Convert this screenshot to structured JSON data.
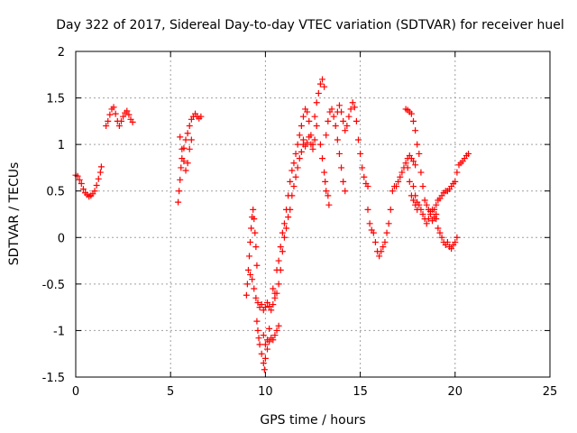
{
  "chart_data": {
    "type": "scatter",
    "title": "Day 322 of 2017, Sidereal Day-to-day VTEC variation (SDTVAR) for receiver huel",
    "xlabel": "GPS time / hours",
    "ylabel": "SDTVAR / TECUs",
    "xlim": [
      0,
      25
    ],
    "ylim": [
      -1.5,
      2
    ],
    "x_ticks": [
      0,
      5,
      10,
      15,
      20,
      25
    ],
    "x_tick_labels": [
      "0",
      "5",
      "10",
      "15",
      "20",
      "25"
    ],
    "y_ticks": [
      -1.5,
      -1,
      -0.5,
      0,
      0.5,
      1,
      1.5,
      2
    ],
    "y_tick_labels": [
      "-1.5",
      "-1",
      "-0.5",
      "0",
      "0.5",
      "1",
      "1.5",
      "2"
    ],
    "grid": true,
    "marker": "+",
    "color": "#ff0000",
    "series": [
      {
        "name": "SDTVAR",
        "points": [
          [
            0.0,
            0.67
          ],
          [
            0.1,
            0.66
          ],
          [
            0.2,
            0.62
          ],
          [
            0.3,
            0.58
          ],
          [
            0.4,
            0.52
          ],
          [
            0.5,
            0.48
          ],
          [
            0.6,
            0.46
          ],
          [
            0.7,
            0.44
          ],
          [
            0.8,
            0.45
          ],
          [
            0.9,
            0.47
          ],
          [
            1.0,
            0.5
          ],
          [
            1.1,
            0.56
          ],
          [
            1.2,
            0.63
          ],
          [
            1.3,
            0.7
          ],
          [
            1.35,
            0.76
          ],
          [
            1.6,
            1.2
          ],
          [
            1.7,
            1.25
          ],
          [
            1.8,
            1.32
          ],
          [
            1.9,
            1.38
          ],
          [
            2.0,
            1.4
          ],
          [
            2.1,
            1.33
          ],
          [
            2.2,
            1.25
          ],
          [
            2.3,
            1.2
          ],
          [
            2.4,
            1.25
          ],
          [
            2.5,
            1.3
          ],
          [
            2.6,
            1.34
          ],
          [
            2.7,
            1.36
          ],
          [
            2.8,
            1.32
          ],
          [
            2.9,
            1.27
          ],
          [
            3.0,
            1.24
          ],
          [
            5.4,
            0.38
          ],
          [
            5.45,
            0.5
          ],
          [
            5.5,
            0.62
          ],
          [
            5.55,
            0.75
          ],
          [
            5.6,
            0.85
          ],
          [
            5.7,
            0.96
          ],
          [
            5.8,
            1.05
          ],
          [
            5.9,
            1.12
          ],
          [
            6.0,
            1.2
          ],
          [
            6.1,
            1.27
          ],
          [
            6.2,
            1.3
          ],
          [
            6.3,
            1.33
          ],
          [
            6.4,
            1.3
          ],
          [
            6.5,
            1.28
          ],
          [
            6.6,
            1.3
          ],
          [
            5.5,
            1.08
          ],
          [
            5.6,
            0.95
          ],
          [
            5.7,
            0.82
          ],
          [
            5.8,
            0.72
          ],
          [
            5.9,
            0.8
          ],
          [
            6.0,
            0.95
          ],
          [
            6.1,
            1.05
          ],
          [
            9.0,
            -0.62
          ],
          [
            9.05,
            -0.5
          ],
          [
            9.1,
            -0.35
          ],
          [
            9.15,
            -0.2
          ],
          [
            9.2,
            -0.05
          ],
          [
            9.25,
            0.1
          ],
          [
            9.3,
            0.22
          ],
          [
            9.35,
            0.3
          ],
          [
            9.4,
            0.2
          ],
          [
            9.45,
            0.05
          ],
          [
            9.5,
            -0.1
          ],
          [
            9.55,
            -0.3
          ],
          [
            9.2,
            -0.4
          ],
          [
            9.3,
            -0.45
          ],
          [
            9.4,
            -0.55
          ],
          [
            9.5,
            -0.65
          ],
          [
            9.6,
            -0.7
          ],
          [
            9.7,
            -0.75
          ],
          [
            9.8,
            -0.72
          ],
          [
            9.9,
            -0.78
          ],
          [
            10.0,
            -0.75
          ],
          [
            10.1,
            -0.7
          ],
          [
            10.2,
            -0.74
          ],
          [
            10.3,
            -0.78
          ],
          [
            10.4,
            -0.72
          ],
          [
            10.5,
            -0.65
          ],
          [
            9.55,
            -0.9
          ],
          [
            9.6,
            -1.0
          ],
          [
            9.65,
            -1.08
          ],
          [
            9.7,
            -1.15
          ],
          [
            9.8,
            -1.25
          ],
          [
            9.9,
            -1.35
          ],
          [
            9.95,
            -1.42
          ],
          [
            10.0,
            -1.3
          ],
          [
            10.1,
            -1.2
          ],
          [
            10.2,
            -1.12
          ],
          [
            10.3,
            -1.08
          ],
          [
            10.4,
            -1.1
          ],
          [
            10.5,
            -1.05
          ],
          [
            10.6,
            -1.0
          ],
          [
            10.7,
            -0.95
          ],
          [
            9.9,
            -1.05
          ],
          [
            10.0,
            -1.15
          ],
          [
            10.1,
            -1.1
          ],
          [
            10.2,
            -0.98
          ],
          [
            10.6,
            -0.6
          ],
          [
            10.7,
            -0.5
          ],
          [
            10.8,
            -0.35
          ],
          [
            10.9,
            -0.15
          ],
          [
            11.0,
            0.0
          ],
          [
            11.1,
            0.1
          ],
          [
            11.2,
            0.22
          ],
          [
            11.3,
            0.3
          ],
          [
            11.4,
            0.45
          ],
          [
            11.5,
            0.55
          ],
          [
            11.6,
            0.65
          ],
          [
            11.7,
            0.75
          ],
          [
            11.8,
            0.85
          ],
          [
            11.9,
            0.92
          ],
          [
            12.0,
            1.0
          ],
          [
            10.4,
            -0.55
          ],
          [
            10.5,
            -0.6
          ],
          [
            10.6,
            -0.35
          ],
          [
            10.7,
            -0.25
          ],
          [
            10.8,
            -0.1
          ],
          [
            10.9,
            0.05
          ],
          [
            11.0,
            0.15
          ],
          [
            11.1,
            0.3
          ],
          [
            11.2,
            0.45
          ],
          [
            11.3,
            0.6
          ],
          [
            11.4,
            0.72
          ],
          [
            11.5,
            0.8
          ],
          [
            11.6,
            0.9
          ],
          [
            11.7,
            1.0
          ],
          [
            11.8,
            1.1
          ],
          [
            11.9,
            1.2
          ],
          [
            12.0,
            1.3
          ],
          [
            12.1,
            1.38
          ],
          [
            12.2,
            1.35
          ],
          [
            12.3,
            1.25
          ],
          [
            12.4,
            1.1
          ],
          [
            12.5,
            1.0
          ],
          [
            12.6,
            1.05
          ],
          [
            12.7,
            1.2
          ],
          [
            12.0,
            1.05
          ],
          [
            12.1,
            0.98
          ],
          [
            12.2,
            1.02
          ],
          [
            12.3,
            1.08
          ],
          [
            12.4,
            1.0
          ],
          [
            12.5,
            0.95
          ],
          [
            12.6,
            1.3
          ],
          [
            12.7,
            1.45
          ],
          [
            12.8,
            1.55
          ],
          [
            12.9,
            1.65
          ],
          [
            13.0,
            1.7
          ],
          [
            13.1,
            1.62
          ],
          [
            12.9,
            1.0
          ],
          [
            13.0,
            0.85
          ],
          [
            13.1,
            0.7
          ],
          [
            13.15,
            0.6
          ],
          [
            13.2,
            0.5
          ],
          [
            13.3,
            0.45
          ],
          [
            13.35,
            0.35
          ],
          [
            13.2,
            1.1
          ],
          [
            13.3,
            1.25
          ],
          [
            13.4,
            1.35
          ],
          [
            13.5,
            1.38
          ],
          [
            13.6,
            1.3
          ],
          [
            13.7,
            1.2
          ],
          [
            13.8,
            1.05
          ],
          [
            13.9,
            0.9
          ],
          [
            14.0,
            0.75
          ],
          [
            14.1,
            0.6
          ],
          [
            14.2,
            0.5
          ],
          [
            13.8,
            1.35
          ],
          [
            13.9,
            1.42
          ],
          [
            14.0,
            1.35
          ],
          [
            14.1,
            1.25
          ],
          [
            14.2,
            1.15
          ],
          [
            14.3,
            1.2
          ],
          [
            14.4,
            1.3
          ],
          [
            14.5,
            1.38
          ],
          [
            14.6,
            1.45
          ],
          [
            14.7,
            1.4
          ],
          [
            14.8,
            1.25
          ],
          [
            14.9,
            1.05
          ],
          [
            15.0,
            0.9
          ],
          [
            15.1,
            0.75
          ],
          [
            15.2,
            0.65
          ],
          [
            15.3,
            0.58
          ],
          [
            15.4,
            0.55
          ],
          [
            15.4,
            0.3
          ],
          [
            15.5,
            0.15
          ],
          [
            15.6,
            0.08
          ],
          [
            15.7,
            0.05
          ],
          [
            15.8,
            -0.05
          ],
          [
            15.9,
            -0.15
          ],
          [
            16.0,
            -0.2
          ],
          [
            16.1,
            -0.15
          ],
          [
            16.2,
            -0.1
          ],
          [
            16.3,
            -0.05
          ],
          [
            16.4,
            0.05
          ],
          [
            16.5,
            0.15
          ],
          [
            16.6,
            0.3
          ],
          [
            16.7,
            0.5
          ],
          [
            16.8,
            0.55
          ],
          [
            16.9,
            0.55
          ],
          [
            17.0,
            0.6
          ],
          [
            17.1,
            0.65
          ],
          [
            17.2,
            0.7
          ],
          [
            17.3,
            0.75
          ],
          [
            17.4,
            0.8
          ],
          [
            17.5,
            0.85
          ],
          [
            17.6,
            0.88
          ],
          [
            17.7,
            0.85
          ],
          [
            17.8,
            0.82
          ],
          [
            17.9,
            0.78
          ],
          [
            17.4,
            1.38
          ],
          [
            17.5,
            1.37
          ],
          [
            17.6,
            1.35
          ],
          [
            17.7,
            1.33
          ],
          [
            17.8,
            1.25
          ],
          [
            17.9,
            1.15
          ],
          [
            18.0,
            1.0
          ],
          [
            18.1,
            0.9
          ],
          [
            18.2,
            0.7
          ],
          [
            18.3,
            0.55
          ],
          [
            18.4,
            0.4
          ],
          [
            18.5,
            0.35
          ],
          [
            18.6,
            0.3
          ],
          [
            18.7,
            0.28
          ],
          [
            18.8,
            0.3
          ],
          [
            17.8,
            0.55
          ],
          [
            17.9,
            0.45
          ],
          [
            18.0,
            0.38
          ],
          [
            18.1,
            0.35
          ],
          [
            18.2,
            0.3
          ],
          [
            18.3,
            0.25
          ],
          [
            18.4,
            0.2
          ],
          [
            18.5,
            0.15
          ],
          [
            18.6,
            0.2
          ],
          [
            18.7,
            0.25
          ],
          [
            18.8,
            0.18
          ],
          [
            18.9,
            0.22
          ],
          [
            19.0,
            0.25
          ],
          [
            19.0,
            0.2
          ],
          [
            19.1,
            0.1
          ],
          [
            19.2,
            0.05
          ],
          [
            19.3,
            0.0
          ],
          [
            19.4,
            -0.05
          ],
          [
            19.5,
            -0.08
          ],
          [
            19.6,
            -0.05
          ],
          [
            19.7,
            -0.1
          ],
          [
            19.8,
            -0.12
          ],
          [
            19.9,
            -0.08
          ],
          [
            20.0,
            -0.05
          ],
          [
            20.1,
            0.0
          ],
          [
            18.9,
            0.3
          ],
          [
            19.0,
            0.35
          ],
          [
            19.1,
            0.4
          ],
          [
            19.2,
            0.42
          ],
          [
            19.3,
            0.45
          ],
          [
            19.4,
            0.48
          ],
          [
            19.5,
            0.5
          ],
          [
            19.6,
            0.5
          ],
          [
            19.7,
            0.52
          ],
          [
            19.8,
            0.55
          ],
          [
            19.9,
            0.58
          ],
          [
            20.0,
            0.6
          ],
          [
            20.1,
            0.7
          ],
          [
            20.2,
            0.78
          ],
          [
            20.3,
            0.8
          ],
          [
            20.4,
            0.82
          ],
          [
            20.5,
            0.85
          ],
          [
            20.6,
            0.88
          ],
          [
            20.7,
            0.9
          ],
          [
            17.5,
            0.75
          ],
          [
            17.6,
            0.6
          ],
          [
            17.7,
            0.45
          ],
          [
            17.8,
            0.4
          ],
          [
            17.9,
            0.35
          ],
          [
            18.0,
            0.3
          ]
        ]
      }
    ]
  }
}
